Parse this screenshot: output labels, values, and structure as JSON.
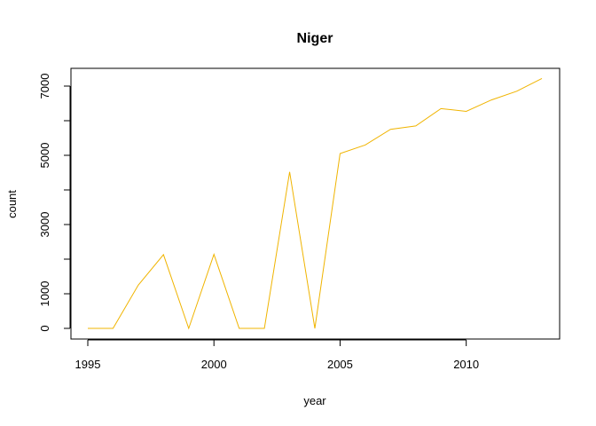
{
  "chart_data": {
    "type": "line",
    "title": "Niger",
    "xlabel": "year",
    "ylabel": "count",
    "x": [
      1995,
      1996,
      1997,
      1998,
      1999,
      2000,
      2001,
      2002,
      2003,
      2004,
      2005,
      2006,
      2007,
      2008,
      2009,
      2010,
      2011,
      2012,
      2013
    ],
    "series": [
      {
        "values": [
          0,
          0,
          1250,
          2130,
          0,
          2140,
          0,
          0,
          4520,
          0,
          5050,
          5300,
          5750,
          5850,
          6350,
          6270,
          6600,
          6850,
          7220
        ],
        "color": "#f0b400"
      }
    ],
    "xlim": [
      1995,
      2013
    ],
    "ylim": [
      0,
      7220
    ],
    "xticks": [
      1995,
      2000,
      2005,
      2010
    ],
    "xtick_labels": [
      "1995",
      "2000",
      "2005",
      "2010"
    ],
    "yticks": [
      0,
      1000,
      2000,
      3000,
      4000,
      5000,
      6000,
      7000
    ],
    "ytick_labels": [
      "0",
      "1000",
      "",
      "3000",
      "",
      "5000",
      "",
      "7000"
    ],
    "grid": false,
    "legend": "none"
  }
}
